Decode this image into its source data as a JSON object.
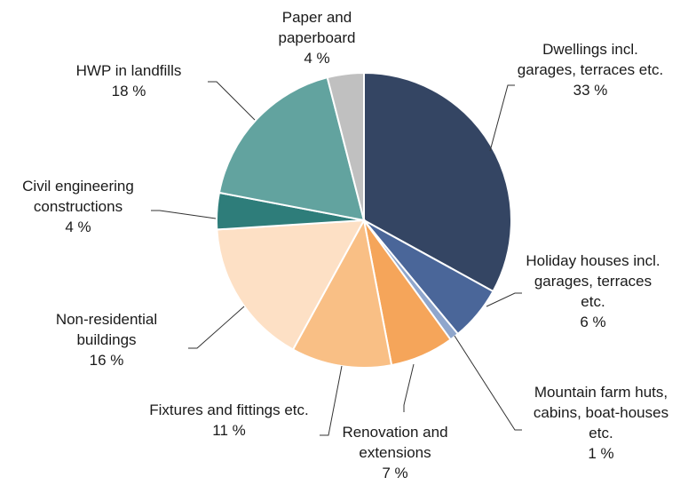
{
  "chart_data": {
    "type": "pie",
    "categories": [
      "Dwellings incl. garages, terraces etc.",
      "Holiday houses incl. garages, terraces etc.",
      "Mountain farm huts, cabins, boat-houses etc.",
      "Renovation and extensions",
      "Fixtures and fittings etc.",
      "Non-residential buildings",
      "Civil engineering constructions",
      "HWP in landfills",
      "Paper and paperboard"
    ],
    "values": [
      33,
      6,
      1,
      7,
      11,
      16,
      4,
      18,
      4
    ],
    "value_labels": [
      "33 %",
      "6 %",
      "1 %",
      "7 %",
      "11 %",
      "16 %",
      "4 %",
      "18 %",
      "4 %"
    ],
    "colors": [
      "#344563",
      "#4a6699",
      "#8fa6cc",
      "#f5a55a",
      "#f9bf85",
      "#fde0c5",
      "#2e7d7a",
      "#62a39f",
      "#c0c0c0"
    ]
  }
}
